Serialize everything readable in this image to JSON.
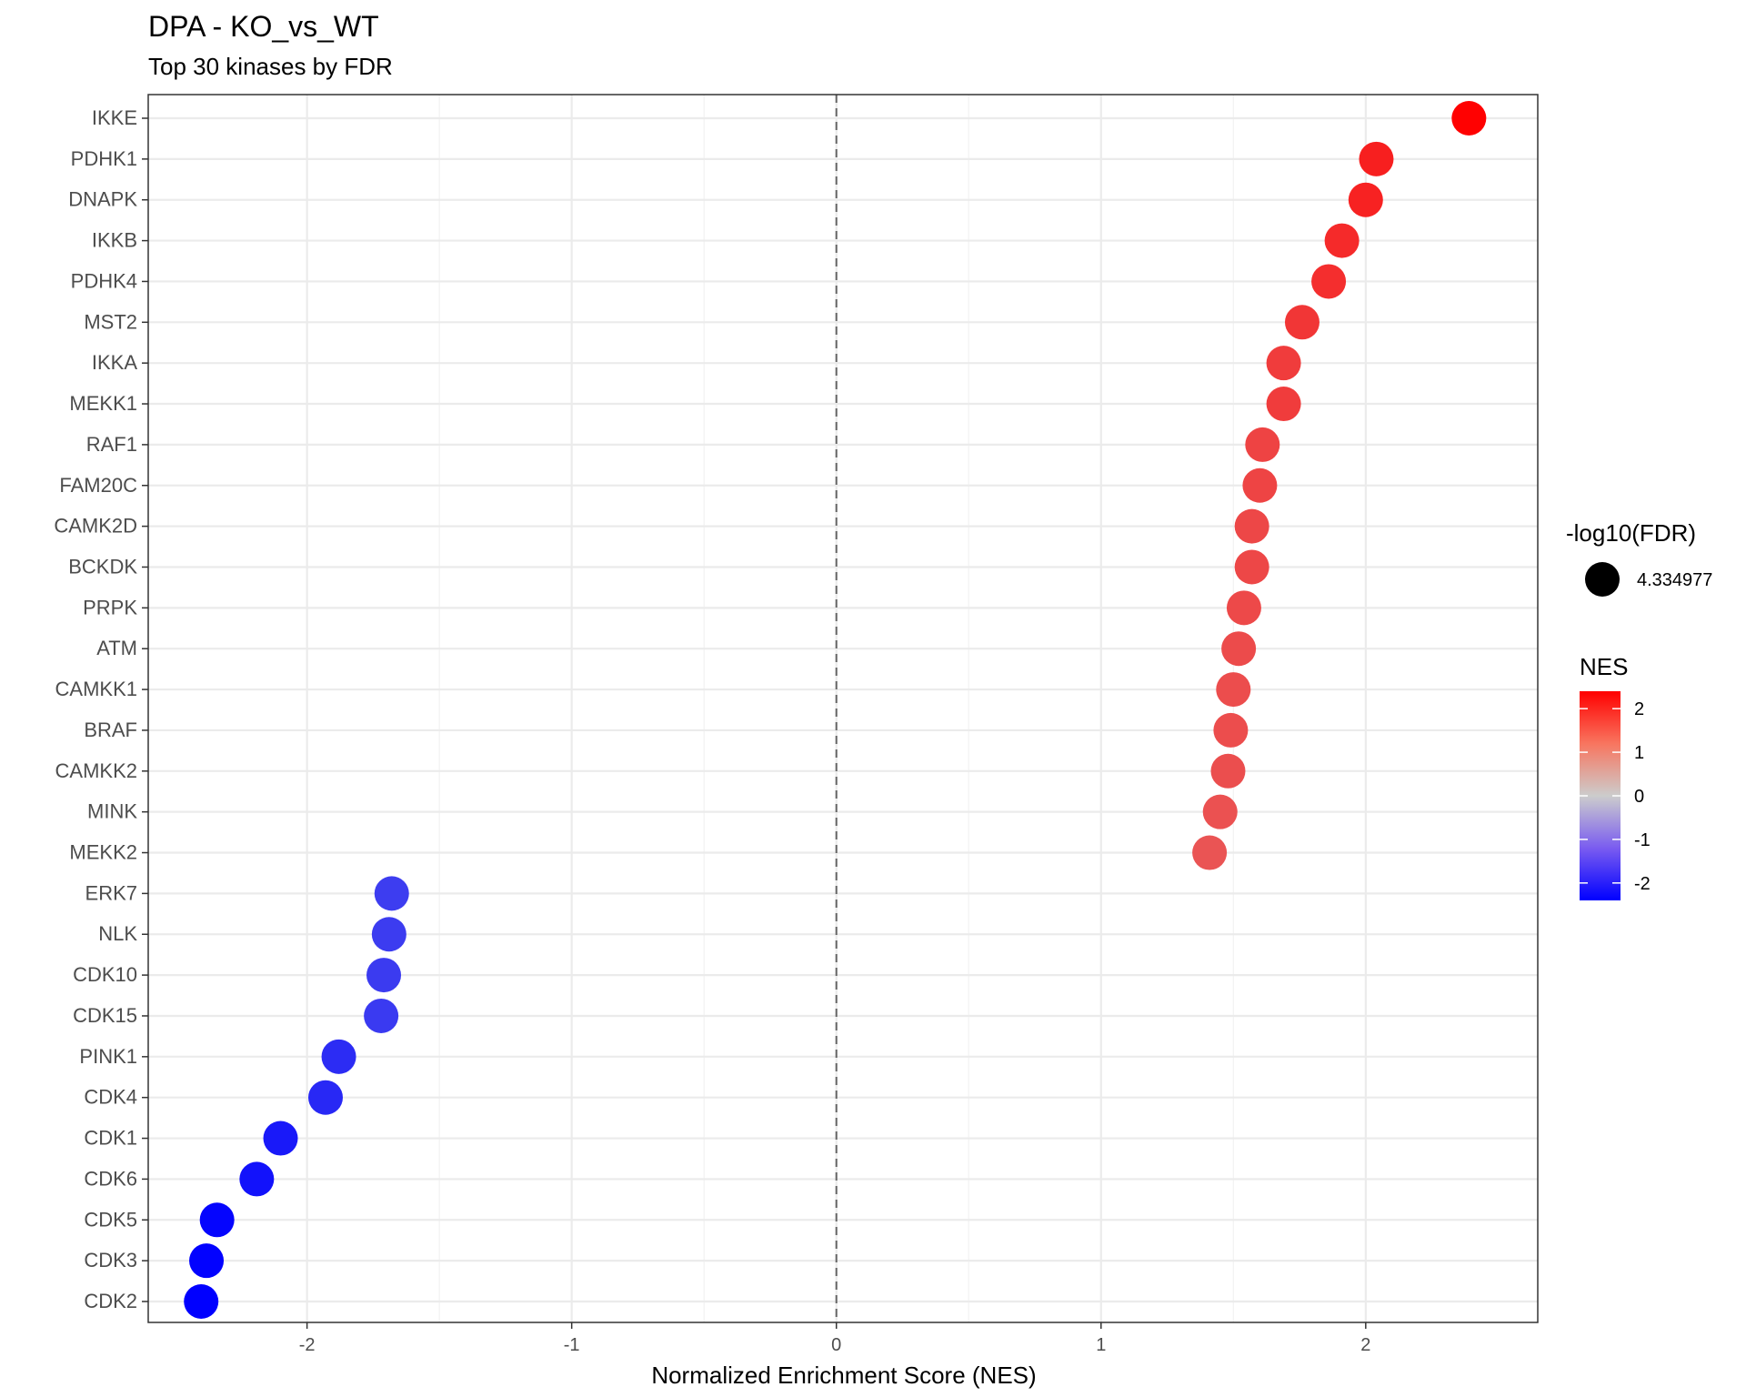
{
  "chart_data": {
    "type": "scatter",
    "title": "DPA - KO_vs_WT",
    "subtitle": "Top 30 kinases by FDR",
    "xlabel": "Normalized Enrichment Score (NES)",
    "ylabel": "",
    "xlim": [
      -2.6,
      2.65
    ],
    "xticks": [
      -2,
      -1,
      0,
      1,
      2
    ],
    "grid": true,
    "reference_line": {
      "x": 0,
      "style": "dashed"
    },
    "categories": [
      "IKKE",
      "PDHK1",
      "DNAPK",
      "IKKB",
      "PDHK4",
      "MST2",
      "IKKA",
      "MEKK1",
      "RAF1",
      "FAM20C",
      "CAMK2D",
      "BCKDK",
      "PRPK",
      "ATM",
      "CAMKK1",
      "BRAF",
      "CAMKK2",
      "MINK",
      "MEKK2",
      "ERK7",
      "NLK",
      "CDK10",
      "CDK15",
      "PINK1",
      "CDK4",
      "CDK1",
      "CDK6",
      "CDK5",
      "CDK3",
      "CDK2"
    ],
    "values": [
      2.39,
      2.04,
      2.0,
      1.91,
      1.86,
      1.76,
      1.69,
      1.69,
      1.61,
      1.6,
      1.57,
      1.57,
      1.54,
      1.52,
      1.5,
      1.49,
      1.48,
      1.45,
      1.41,
      -1.68,
      -1.69,
      -1.71,
      -1.72,
      -1.88,
      -1.93,
      -2.1,
      -2.19,
      -2.34,
      -2.38,
      -2.4
    ],
    "size_legend": {
      "title": "-log10(FDR)",
      "entries": [
        "4.334977"
      ]
    },
    "color_legend": {
      "title": "NES",
      "ticks": [
        2,
        1,
        0,
        -1,
        -2
      ],
      "range": [
        -2.4,
        2.4
      ],
      "low_color": "#0000ff",
      "mid_color": "#cccccc",
      "high_color": "#ff0000"
    },
    "legend_position": "right"
  }
}
